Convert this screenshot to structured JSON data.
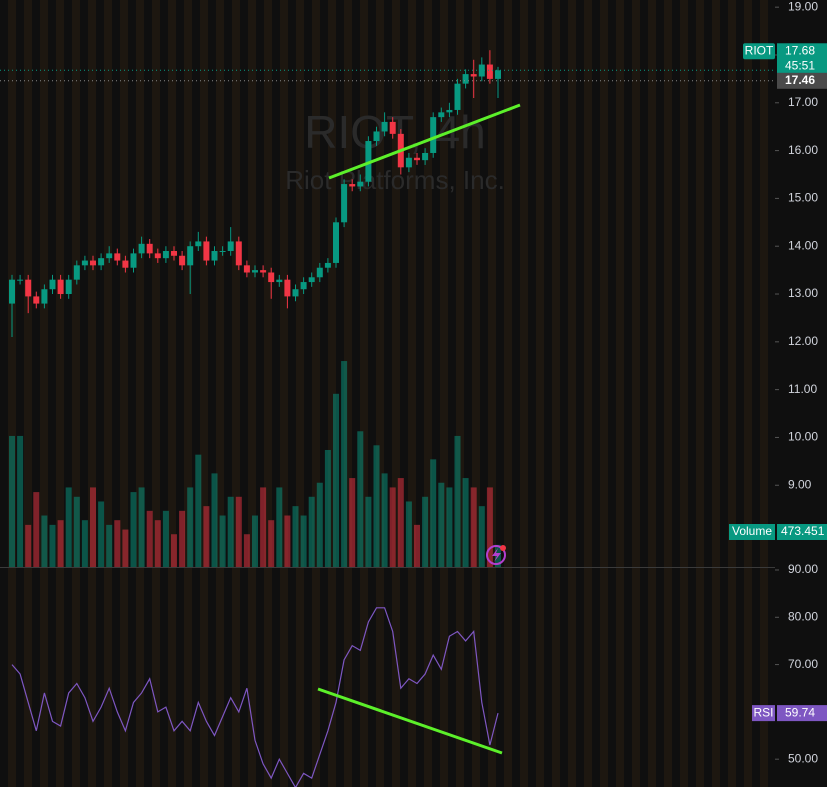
{
  "chart_data": {
    "type": "candlestick",
    "title": "RIOT, 4h",
    "subtitle": "Riot Platforms, Inc.",
    "up_color": "#089981",
    "down_color": "#f23645",
    "open": [
      12.8,
      13.3,
      13.3,
      12.95,
      12.8,
      13.1,
      13.3,
      13.0,
      13.3,
      13.6,
      13.7,
      13.6,
      13.75,
      13.85,
      13.7,
      13.55,
      13.85,
      14.05,
      13.85,
      13.75,
      13.9,
      13.8,
      13.6,
      14.0,
      14.1,
      13.7,
      13.9,
      13.9,
      14.1,
      13.6,
      13.45,
      13.5,
      13.45,
      13.25,
      13.3,
      12.95,
      13.1,
      13.25,
      13.35,
      13.55,
      13.65,
      14.5,
      15.3,
      15.25,
      15.35,
      16.2,
      16.4,
      16.6,
      16.35,
      15.65,
      15.85,
      15.8,
      15.95,
      16.7,
      16.8,
      16.85,
      17.4,
      17.6,
      17.55,
      17.8,
      17.5
    ],
    "high": [
      13.4,
      13.4,
      13.4,
      13.05,
      13.2,
      13.4,
      13.4,
      13.4,
      13.7,
      13.8,
      13.8,
      13.85,
      14.0,
      13.95,
      13.8,
      13.95,
      14.2,
      14.15,
      13.95,
      14.0,
      14.0,
      13.9,
      14.1,
      14.3,
      14.2,
      14.0,
      14.0,
      14.4,
      14.2,
      13.7,
      13.6,
      13.6,
      13.55,
      13.4,
      13.4,
      13.2,
      13.35,
      13.45,
      13.65,
      13.75,
      14.6,
      15.4,
      15.4,
      15.5,
      16.3,
      16.5,
      16.8,
      16.7,
      16.45,
      15.95,
      15.95,
      16.05,
      16.8,
      16.9,
      17.0,
      17.5,
      17.7,
      17.9,
      17.95,
      18.1,
      17.75
    ],
    "low": [
      12.1,
      13.2,
      12.6,
      12.7,
      12.7,
      13.0,
      12.9,
      12.9,
      13.2,
      13.5,
      13.5,
      13.5,
      13.65,
      13.6,
      13.45,
      13.45,
      13.75,
      13.75,
      13.65,
      13.65,
      13.7,
      13.5,
      13.0,
      13.9,
      13.6,
      13.6,
      13.8,
      13.8,
      13.5,
      13.35,
      13.35,
      13.35,
      12.9,
      13.15,
      12.7,
      12.85,
      13.0,
      13.15,
      13.25,
      13.45,
      13.55,
      14.4,
      15.15,
      15.15,
      15.25,
      16.1,
      16.3,
      16.25,
      15.5,
      15.55,
      15.7,
      15.7,
      15.85,
      16.6,
      16.7,
      16.75,
      17.3,
      17.1,
      17.45,
      17.4,
      17.1
    ],
    "close": [
      13.3,
      13.3,
      12.95,
      12.8,
      13.1,
      13.3,
      13.0,
      13.3,
      13.6,
      13.7,
      13.6,
      13.75,
      13.85,
      13.7,
      13.55,
      13.85,
      14.05,
      13.85,
      13.75,
      13.9,
      13.8,
      13.6,
      14.0,
      14.1,
      13.7,
      13.9,
      13.9,
      14.1,
      13.6,
      13.45,
      13.5,
      13.45,
      13.25,
      13.3,
      12.95,
      13.1,
      13.25,
      13.35,
      13.55,
      13.65,
      14.5,
      15.3,
      15.25,
      15.35,
      16.2,
      16.4,
      16.6,
      16.35,
      15.65,
      15.85,
      15.8,
      15.95,
      16.7,
      16.8,
      16.85,
      17.4,
      17.6,
      17.55,
      17.8,
      17.5,
      17.68
    ],
    "ylim": [
      7.29,
      19.15
    ],
    "yticks": [
      {
        "value": 19,
        "label": "19.00"
      },
      {
        "value": 18,
        "label": "18.00"
      },
      {
        "value": 17,
        "label": "17.00"
      },
      {
        "value": 16,
        "label": "16.00"
      },
      {
        "value": 15,
        "label": "15.00"
      },
      {
        "value": 14,
        "label": "14.00"
      },
      {
        "value": 13,
        "label": "13.00"
      },
      {
        "value": 12,
        "label": "12.00"
      },
      {
        "value": 11,
        "label": "11.00"
      },
      {
        "value": 10,
        "label": "10.00"
      },
      {
        "value": 9,
        "label": "9.00"
      }
    ],
    "last_price": {
      "label": "RIOT",
      "value": 17.68,
      "countdown": "45:51"
    },
    "second_price": 17.46,
    "volume": {
      "name": "Volume",
      "ylim": [
        0,
        4700
      ],
      "values": [
        2800,
        2800,
        900,
        1600,
        1100,
        900,
        1000,
        1700,
        1500,
        1000,
        1700,
        1400,
        900,
        1000,
        800,
        1600,
        1700,
        1200,
        1000,
        1200,
        700,
        1200,
        1700,
        2400,
        1300,
        2000,
        1100,
        1500,
        1500,
        700,
        1100,
        1700,
        1000,
        1700,
        1100,
        1300,
        1100,
        1500,
        1800,
        2500,
        3700,
        4400,
        1900,
        2900,
        1500,
        2600,
        2000,
        1700,
        1900,
        1400,
        900,
        1500,
        2300,
        1800,
        1700,
        2800,
        1900,
        1700,
        1300,
        1700,
        473.451
      ]
    },
    "rsi": {
      "name": "RSI",
      "color": "#7e57c2",
      "ylim": [
        44.12,
        90.63
      ],
      "yticks": [
        {
          "value": 90,
          "label": "90.00"
        },
        {
          "value": 80,
          "label": "80.00"
        },
        {
          "value": 70,
          "label": "70.00"
        },
        {
          "value": 50,
          "label": "50.00"
        }
      ],
      "values": [
        70,
        68,
        62,
        56,
        64,
        58,
        57,
        64,
        66,
        63,
        58,
        61,
        65,
        60,
        56,
        62,
        64,
        67,
        60,
        61,
        56,
        58,
        56,
        62,
        58,
        55,
        59,
        63,
        60,
        65,
        54,
        49,
        46,
        50,
        47,
        44,
        47,
        46,
        51,
        56,
        62,
        71,
        74,
        73,
        79,
        82,
        82,
        77,
        65,
        67,
        66,
        68,
        72,
        69,
        76,
        77,
        75,
        77,
        62,
        53,
        59.74
      ]
    }
  }
}
